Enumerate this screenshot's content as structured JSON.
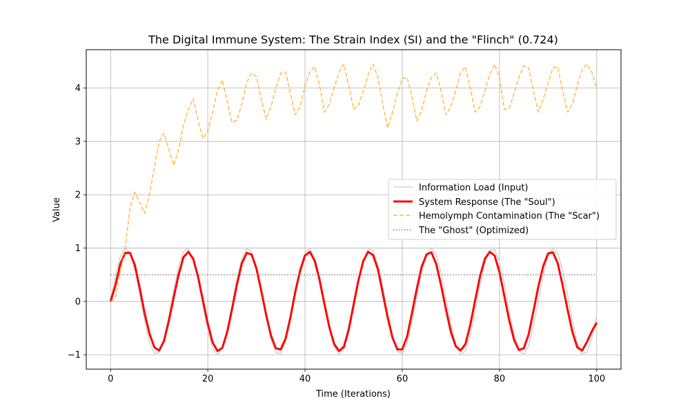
{
  "chart_data": {
    "type": "line",
    "title": "The Digital Immune System: The Strain Index (SI) and the \"Flinch\" (0.724)",
    "xlabel": "Time (Iterations)",
    "ylabel": "Value",
    "xlim": [
      -5,
      105
    ],
    "ylim": [
      -1.27,
      4.72
    ],
    "xticks": [
      0,
      20,
      40,
      60,
      80,
      100
    ],
    "xtick_labels": [
      "0",
      "20",
      "40",
      "60",
      "80",
      "100"
    ],
    "yticks": [
      -1,
      0,
      1,
      2,
      3,
      4
    ],
    "ytick_labels": [
      "−1",
      "0",
      "1",
      "2",
      "3",
      "4"
    ],
    "grid": true,
    "legend_position": "center-right",
    "x": [
      0,
      1,
      2,
      3,
      4,
      5,
      6,
      7,
      8,
      9,
      10,
      11,
      12,
      13,
      14,
      15,
      16,
      17,
      18,
      19,
      20,
      21,
      22,
      23,
      24,
      25,
      26,
      27,
      28,
      29,
      30,
      31,
      32,
      33,
      34,
      35,
      36,
      37,
      38,
      39,
      40,
      41,
      42,
      43,
      44,
      45,
      46,
      47,
      48,
      49,
      50,
      51,
      52,
      53,
      54,
      55,
      56,
      57,
      58,
      59,
      60,
      61,
      62,
      63,
      64,
      65,
      66,
      67,
      68,
      69,
      70,
      71,
      72,
      73,
      74,
      75,
      76,
      77,
      78,
      79,
      80,
      81,
      82,
      83,
      84,
      85,
      86,
      87,
      88,
      89,
      90,
      91,
      92,
      93,
      94,
      95,
      96,
      97,
      98,
      99,
      100
    ],
    "series": [
      {
        "name": "Information Load (Input)",
        "color": "#d3d3d3",
        "style": "solid",
        "values": [
          0,
          0.479,
          0.841,
          0.997,
          0.909,
          0.598,
          0.141,
          -0.351,
          -0.757,
          -0.978,
          -0.959,
          -0.706,
          -0.279,
          0.215,
          0.657,
          0.938,
          0.989,
          0.798,
          0.412,
          -0.075,
          -0.544,
          -0.88,
          -1.0,
          -0.875,
          -0.537,
          -0.066,
          0.42,
          0.803,
          0.991,
          0.935,
          0.65,
          0.206,
          -0.288,
          -0.712,
          -0.961,
          -0.977,
          -0.751,
          -0.342,
          0.15,
          0.605,
          0.913,
          0.997,
          0.836,
          0.471,
          -0.009,
          -0.487,
          -0.846,
          -0.998,
          -0.905,
          -0.59,
          -0.132,
          0.359,
          0.762,
          0.979,
          0.956,
          0.7,
          0.271,
          -0.224,
          -0.664,
          -0.94,
          -0.988,
          -0.793,
          -0.404,
          0.084,
          0.551,
          0.884,
          1.0,
          0.871,
          0.529,
          0.057,
          -0.428,
          -0.808,
          -0.992,
          -0.932,
          -0.643,
          -0.197,
          0.297,
          0.718,
          0.963,
          0.976,
          0.746,
          0.334,
          -0.159,
          -0.612,
          -0.916,
          -0.996,
          -0.831,
          -0.463,
          0.018,
          0.495,
          0.85,
          0.998,
          0.901,
          0.582,
          0.123,
          -0.367,
          -0.767,
          -0.981,
          -0.953,
          -0.694,
          -0.262
        ]
      },
      {
        "name": "System Response (The \"Soul\")",
        "color": "#ff0000",
        "style": "solid",
        "values": [
          0,
          0.3,
          0.7,
          0.91,
          0.91,
          0.68,
          0.25,
          -0.22,
          -0.6,
          -0.86,
          -0.92,
          -0.74,
          -0.36,
          0.08,
          0.5,
          0.83,
          0.93,
          0.8,
          0.46,
          0.02,
          -0.42,
          -0.77,
          -0.93,
          -0.87,
          -0.57,
          -0.14,
          0.32,
          0.71,
          0.91,
          0.88,
          0.62,
          0.2,
          -0.25,
          -0.64,
          -0.88,
          -0.9,
          -0.7,
          -0.3,
          0.18,
          0.58,
          0.86,
          0.93,
          0.76,
          0.4,
          -0.05,
          -0.48,
          -0.8,
          -0.93,
          -0.85,
          -0.52,
          -0.06,
          0.4,
          0.76,
          0.93,
          0.87,
          0.6,
          0.15,
          -0.3,
          -0.68,
          -0.9,
          -0.9,
          -0.66,
          -0.22,
          0.24,
          0.65,
          0.88,
          0.92,
          0.7,
          0.3,
          -0.15,
          -0.57,
          -0.84,
          -0.92,
          -0.8,
          -0.44,
          0.02,
          0.47,
          0.8,
          0.93,
          0.86,
          0.55,
          0.1,
          -0.35,
          -0.72,
          -0.91,
          -0.88,
          -0.62,
          -0.18,
          0.28,
          0.66,
          0.9,
          0.92,
          0.71,
          0.3,
          -0.15,
          -0.57,
          -0.86,
          -0.92,
          -0.76,
          -0.56,
          -0.4
        ]
      },
      {
        "name": "Hemolymph Contamination (The \"Scar\")",
        "color": "#ffa500",
        "style": "dashed",
        "values": [
          0,
          0.05,
          0.55,
          1.0,
          1.75,
          2.05,
          1.85,
          1.65,
          2.0,
          2.5,
          3.0,
          3.15,
          2.85,
          2.55,
          2.85,
          3.3,
          3.6,
          3.8,
          3.4,
          3.05,
          3.2,
          3.55,
          3.95,
          4.15,
          3.75,
          3.35,
          3.4,
          3.7,
          4.1,
          4.28,
          4.22,
          3.8,
          3.42,
          3.65,
          4.0,
          4.28,
          4.3,
          3.9,
          3.5,
          3.65,
          4.05,
          4.3,
          4.4,
          4.05,
          3.55,
          3.7,
          4.0,
          4.3,
          4.45,
          4.05,
          3.6,
          3.68,
          3.95,
          4.25,
          4.45,
          4.2,
          3.7,
          3.25,
          3.55,
          3.9,
          4.18,
          4.2,
          3.85,
          3.38,
          3.58,
          3.95,
          4.2,
          4.28,
          3.95,
          3.5,
          3.65,
          3.95,
          4.28,
          4.4,
          4.0,
          3.55,
          3.65,
          3.95,
          4.25,
          4.45,
          4.2,
          3.6,
          3.62,
          3.9,
          4.2,
          4.42,
          4.38,
          3.95,
          3.55,
          3.78,
          4.1,
          4.38,
          4.4,
          3.95,
          3.55,
          3.7,
          4.05,
          4.35,
          4.45,
          4.3,
          3.98
        ]
      },
      {
        "name": "The \"Ghost\" (Optimized)",
        "color": "#808080",
        "style": "dotted",
        "values": [
          0.5,
          0.5,
          0.5,
          0.5,
          0.5,
          0.5,
          0.5,
          0.5,
          0.5,
          0.5,
          0.5,
          0.5,
          0.5,
          0.5,
          0.5,
          0.5,
          0.5,
          0.5,
          0.5,
          0.5,
          0.5,
          0.5,
          0.5,
          0.5,
          0.5,
          0.5,
          0.5,
          0.5,
          0.5,
          0.5,
          0.5,
          0.5,
          0.5,
          0.5,
          0.5,
          0.5,
          0.5,
          0.5,
          0.5,
          0.5,
          0.5,
          0.5,
          0.5,
          0.5,
          0.5,
          0.5,
          0.5,
          0.5,
          0.5,
          0.5,
          0.5,
          0.5,
          0.5,
          0.5,
          0.5,
          0.5,
          0.5,
          0.5,
          0.5,
          0.5,
          0.5,
          0.5,
          0.5,
          0.5,
          0.5,
          0.5,
          0.5,
          0.5,
          0.5,
          0.5,
          0.5,
          0.5,
          0.5,
          0.5,
          0.5,
          0.5,
          0.5,
          0.5,
          0.5,
          0.5,
          0.5,
          0.5,
          0.5,
          0.5,
          0.5,
          0.5,
          0.5,
          0.5,
          0.5,
          0.5,
          0.5,
          0.5,
          0.5,
          0.5,
          0.5,
          0.5,
          0.5,
          0.5,
          0.5,
          0.5,
          0.5
        ]
      }
    ]
  }
}
